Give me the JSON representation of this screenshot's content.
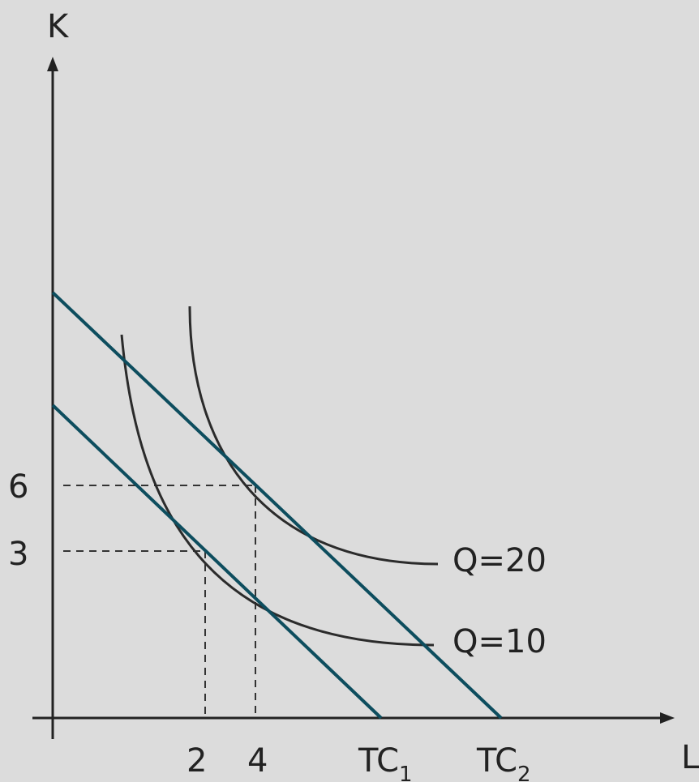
{
  "axes": {
    "y_label": "K",
    "x_label": "L"
  },
  "ticks": {
    "y": [
      "6",
      "3"
    ],
    "x": [
      "2",
      "4"
    ]
  },
  "curves": {
    "q20": "Q=20",
    "q10": "Q=10"
  },
  "cost_lines": {
    "tc1_main": "TC",
    "tc1_sub": "1",
    "tc2_main": "TC",
    "tc2_sub": "2"
  },
  "colors": {
    "background": "#dcdcdc",
    "isocost": "#0d4d5e",
    "isoquant": "#2b2b2b",
    "axis": "#222222",
    "guide": "#333333"
  }
}
